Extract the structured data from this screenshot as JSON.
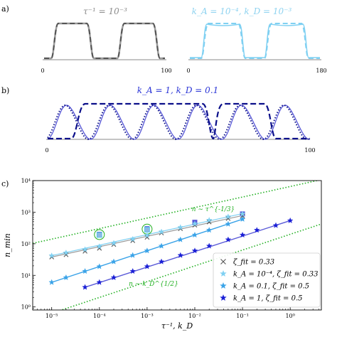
{
  "panels": {
    "a": {
      "label": "a)",
      "left": {
        "title": "τ⁻¹ = 10⁻³",
        "title_color": "#8c8c8c",
        "x_ticks": [
          "0",
          "100"
        ]
      },
      "right": {
        "title": "k_A = 10⁻⁴, k_D = 10⁻³",
        "title_color": "#8fd3f0",
        "x_ticks": [
          "0",
          "180"
        ]
      }
    },
    "b": {
      "label": "b)",
      "title": "k_A = 1, k_D = 0.1",
      "title_color": "#2b35d6",
      "x_ticks": [
        "0",
        "100"
      ]
    },
    "c": {
      "label": "c)"
    }
  },
  "colors": {
    "gray": "#555555",
    "gray_light": "#9a9a9a",
    "lightblue": "#7fd0f2",
    "medblue": "#3aa3e8",
    "darkblue": "#1a1fd6",
    "navy": "#0b0f8a",
    "purple": "#5a5ad8",
    "green": "#22b022",
    "cyan_marker": "#48c4e8"
  },
  "chart_data": {
    "type": "scatter",
    "xlabel": "τ⁻¹, k_D",
    "ylabel": "n_min",
    "xscale": "log",
    "yscale": "log",
    "xlim": [
      4e-06,
      4.5
    ],
    "ylim": [
      0.8,
      10000
    ],
    "x_ticks": [
      "10⁻⁵",
      "10⁻⁴",
      "10⁻³",
      "10⁻²",
      "10⁻¹",
      "10⁰"
    ],
    "y_ticks": [
      "10⁰",
      "10¹",
      "10²",
      "10³",
      "10⁴"
    ],
    "legend_position": "bottom-right",
    "series": [
      {
        "name": "ζ_fit = 0.33",
        "marker": "x",
        "x": [
          1e-05,
          2e-05,
          5e-05,
          0.0001,
          0.0002,
          0.0005,
          0.001,
          0.002,
          0.005,
          0.01,
          0.02,
          0.05,
          0.1
        ],
        "y": [
          38,
          45,
          58,
          72,
          95,
          125,
          160,
          220,
          300,
          390,
          490,
          630,
          760
        ],
        "fit": [
          38,
          780
        ]
      },
      {
        "name": "k_A = 10⁻⁴, ζ_fit = 0.33",
        "marker": "star",
        "x": [
          1e-05,
          2e-05,
          5e-05,
          0.0001,
          0.0002,
          0.0005,
          0.001,
          0.002,
          0.005,
          0.01,
          0.02,
          0.05,
          0.1
        ],
        "y": [
          42,
          52,
          66,
          82,
          105,
          140,
          185,
          240,
          330,
          430,
          560,
          720,
          880
        ],
        "fit": [
          42,
          900
        ]
      },
      {
        "name": "k_A = 0.1, ζ_fit = 0.5",
        "marker": "star",
        "x": [
          1e-05,
          2e-05,
          5e-05,
          0.0001,
          0.0002,
          0.0005,
          0.001,
          0.002,
          0.005,
          0.01,
          0.02,
          0.05,
          0.1
        ],
        "y": [
          6,
          8.5,
          13.5,
          19,
          27,
          43,
          60,
          85,
          135,
          190,
          270,
          420,
          600
        ],
        "fit": [
          6,
          600
        ]
      },
      {
        "name": "k_A = 1, ζ_fit = 0.5",
        "marker": "star",
        "x": [
          5e-05,
          0.0001,
          0.0002,
          0.0005,
          0.001,
          0.002,
          0.005,
          0.01,
          0.02,
          0.05,
          0.1,
          0.2,
          0.5,
          1
        ],
        "y": [
          4.2,
          6,
          8.5,
          13.5,
          19,
          27,
          43,
          60,
          85,
          135,
          190,
          270,
          380,
          540
        ],
        "fit_range": [
          5e-05,
          1
        ],
        "fit": [
          4.2,
          540
        ]
      },
      {
        "name": "",
        "marker": "square",
        "x": [
          0.0001,
          0.001,
          0.01,
          0.1
        ],
        "y": [
          200,
          300,
          480,
          880
        ]
      },
      {
        "name": "",
        "marker": "square",
        "x": [
          0.0001,
          0.001
        ],
        "y": [
          190,
          280
        ]
      }
    ],
    "guides": [
      {
        "label": "n ∼ τ^{-1/3}",
        "slope": 0.3333,
        "anchor_x": 1e-05,
        "anchor_y": 140
      },
      {
        "label": "n ∼ k_D^{1/2}",
        "slope": 0.5,
        "anchor_x": 1e-05,
        "anchor_y": 0.63
      }
    ]
  }
}
